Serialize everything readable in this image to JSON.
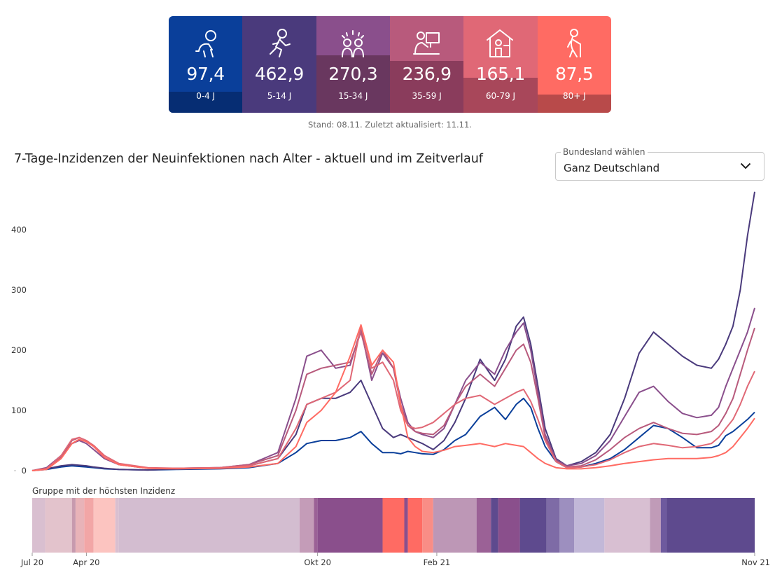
{
  "tiles": [
    {
      "value": "97,4",
      "label": "0-4 J",
      "icon": "baby-crawling-icon",
      "color": "#0a3f9a",
      "dark": "#062d73",
      "split": 108
    },
    {
      "value": "462,9",
      "label": "5-14 J",
      "icon": "child-running-icon",
      "color": "#4a3a7c",
      "dark": "#4a3a7c",
      "split": 0
    },
    {
      "value": "270,3",
      "label": "15-34 J",
      "icon": "young-adults-party-icon",
      "color": "#8a4f8c",
      "dark": "#69375f",
      "split": 56
    },
    {
      "value": "236,9",
      "label": "35-59 J",
      "icon": "office-worker-icon",
      "color": "#b85a7c",
      "dark": "#8a3c5c",
      "split": 64
    },
    {
      "value": "165,1",
      "label": "60-79 J",
      "icon": "senior-at-home-icon",
      "color": "#e06876",
      "dark": "#a8475a",
      "split": 88
    },
    {
      "value": "87,5",
      "label": "80+ J",
      "icon": "elderly-with-cane-icon",
      "color": "#ff6b63",
      "dark": "#b84a4a",
      "split": 112
    }
  ],
  "stand": "Stand: 08.11. Zuletzt aktualisiert: 11.11.",
  "title": "7-Tage-Inzidenzen der Neuinfektionen nach Alter - aktuell und im Zeitverlauf",
  "select": {
    "legend": "Bundesland wählen",
    "value": "Ganz Deutschland"
  },
  "band_label": "Gruppe mit der höchsten Inzidenz",
  "chart_data": {
    "type": "line",
    "y_ticks": [
      0,
      100,
      200,
      300,
      400
    ],
    "ylim": [
      0,
      470
    ],
    "x_ticks": [
      "Jul 20",
      "Apr 20",
      "Okt 20",
      "Feb 21",
      "Nov 21"
    ],
    "x_tick_pos": [
      0.0,
      0.075,
      0.395,
      0.56,
      1.0
    ],
    "x": [
      0.0,
      0.02,
      0.04,
      0.055,
      0.065,
      0.075,
      0.085,
      0.1,
      0.12,
      0.16,
      0.2,
      0.26,
      0.3,
      0.34,
      0.365,
      0.38,
      0.4,
      0.42,
      0.44,
      0.455,
      0.47,
      0.485,
      0.5,
      0.51,
      0.52,
      0.53,
      0.54,
      0.555,
      0.57,
      0.585,
      0.6,
      0.62,
      0.64,
      0.655,
      0.67,
      0.68,
      0.69,
      0.7,
      0.71,
      0.725,
      0.74,
      0.76,
      0.78,
      0.8,
      0.82,
      0.84,
      0.86,
      0.88,
      0.9,
      0.92,
      0.94,
      0.95,
      0.96,
      0.97,
      0.98,
      0.99,
      1.0
    ],
    "series": [
      {
        "color": "#0a3f9a",
        "values": [
          0,
          2,
          6,
          8,
          7,
          6,
          5,
          3,
          2,
          1,
          2,
          3,
          5,
          12,
          30,
          45,
          50,
          50,
          55,
          65,
          45,
          30,
          30,
          28,
          32,
          30,
          28,
          27,
          35,
          50,
          60,
          90,
          105,
          85,
          110,
          120,
          105,
          70,
          40,
          15,
          5,
          6,
          12,
          20,
          35,
          55,
          75,
          70,
          55,
          38,
          38,
          42,
          58,
          65,
          75,
          85,
          97
        ]
      },
      {
        "color": "#4a3a7c",
        "values": [
          0,
          3,
          8,
          10,
          9,
          8,
          6,
          4,
          2,
          1,
          3,
          5,
          8,
          20,
          60,
          110,
          120,
          120,
          130,
          150,
          110,
          70,
          55,
          60,
          55,
          50,
          45,
          35,
          50,
          80,
          120,
          185,
          150,
          185,
          240,
          255,
          210,
          140,
          70,
          20,
          8,
          15,
          30,
          60,
          120,
          195,
          230,
          210,
          190,
          175,
          170,
          185,
          210,
          240,
          300,
          390,
          463
        ]
      },
      {
        "color": "#8a4f8c",
        "values": [
          0,
          5,
          25,
          45,
          50,
          45,
          35,
          20,
          10,
          4,
          4,
          5,
          10,
          30,
          120,
          190,
          200,
          170,
          175,
          235,
          150,
          195,
          170,
          120,
          80,
          65,
          60,
          55,
          70,
          110,
          150,
          180,
          160,
          200,
          230,
          245,
          200,
          130,
          60,
          18,
          8,
          12,
          25,
          50,
          90,
          130,
          140,
          115,
          95,
          88,
          92,
          105,
          140,
          170,
          200,
          230,
          270
        ]
      },
      {
        "color": "#b85a7c",
        "values": [
          0,
          4,
          22,
          50,
          55,
          50,
          40,
          22,
          10,
          4,
          4,
          5,
          10,
          25,
          100,
          160,
          170,
          175,
          180,
          230,
          160,
          200,
          170,
          110,
          75,
          65,
          62,
          60,
          75,
          110,
          140,
          160,
          140,
          170,
          200,
          210,
          180,
          120,
          55,
          16,
          6,
          8,
          18,
          35,
          55,
          70,
          80,
          70,
          62,
          60,
          65,
          75,
          95,
          120,
          160,
          200,
          237
        ]
      },
      {
        "color": "#e06876",
        "values": [
          0,
          3,
          25,
          52,
          55,
          50,
          42,
          25,
          12,
          5,
          4,
          5,
          8,
          20,
          70,
          110,
          120,
          130,
          150,
          240,
          170,
          180,
          150,
          100,
          75,
          70,
          72,
          80,
          95,
          110,
          120,
          125,
          110,
          120,
          130,
          135,
          115,
          85,
          50,
          15,
          5,
          6,
          10,
          18,
          30,
          40,
          45,
          42,
          38,
          40,
          45,
          55,
          70,
          85,
          110,
          140,
          165
        ]
      },
      {
        "color": "#ff6b63",
        "values": [
          0,
          2,
          20,
          45,
          52,
          48,
          40,
          22,
          10,
          4,
          3,
          4,
          6,
          12,
          40,
          80,
          100,
          130,
          190,
          242,
          175,
          200,
          180,
          110,
          55,
          40,
          32,
          30,
          34,
          40,
          42,
          45,
          40,
          45,
          42,
          40,
          30,
          20,
          12,
          5,
          3,
          3,
          5,
          8,
          12,
          15,
          18,
          20,
          20,
          20,
          22,
          25,
          30,
          40,
          55,
          70,
          87
        ]
      }
    ],
    "band_segments": [
      {
        "from": 0.0,
        "to": 0.018,
        "color": "#d9bfd0"
      },
      {
        "from": 0.018,
        "to": 0.055,
        "color": "#e3c3cc"
      },
      {
        "from": 0.055,
        "to": 0.06,
        "color": "#c79aae"
      },
      {
        "from": 0.06,
        "to": 0.072,
        "color": "#e8b3b8"
      },
      {
        "from": 0.072,
        "to": 0.085,
        "color": "#f2a6a6"
      },
      {
        "from": 0.085,
        "to": 0.115,
        "color": "#fcc4c0"
      },
      {
        "from": 0.115,
        "to": 0.12,
        "color": "#d9bfd0"
      },
      {
        "from": 0.12,
        "to": 0.37,
        "color": "#d3bdd0"
      },
      {
        "from": 0.37,
        "to": 0.39,
        "color": "#c49cb8"
      },
      {
        "from": 0.39,
        "to": 0.395,
        "color": "#9b6196"
      },
      {
        "from": 0.395,
        "to": 0.485,
        "color": "#8a4f8c"
      },
      {
        "from": 0.485,
        "to": 0.515,
        "color": "#ff6b63"
      },
      {
        "from": 0.515,
        "to": 0.52,
        "color": "#8a4f8c"
      },
      {
        "from": 0.52,
        "to": 0.54,
        "color": "#ff6b63"
      },
      {
        "from": 0.54,
        "to": 0.555,
        "color": "#f98d86"
      },
      {
        "from": 0.555,
        "to": 0.615,
        "color": "#bd97b6"
      },
      {
        "from": 0.615,
        "to": 0.635,
        "color": "#9b6196"
      },
      {
        "from": 0.635,
        "to": 0.645,
        "color": "#5e4a8e"
      },
      {
        "from": 0.645,
        "to": 0.675,
        "color": "#8a4f8c"
      },
      {
        "from": 0.675,
        "to": 0.712,
        "color": "#5e4a8e"
      },
      {
        "from": 0.712,
        "to": 0.73,
        "color": "#7e6ba6"
      },
      {
        "from": 0.73,
        "to": 0.75,
        "color": "#9d8fbf"
      },
      {
        "from": 0.75,
        "to": 0.792,
        "color": "#c2b8d8"
      },
      {
        "from": 0.792,
        "to": 0.855,
        "color": "#d8bfd2"
      },
      {
        "from": 0.855,
        "to": 0.87,
        "color": "#c09bb8"
      },
      {
        "from": 0.87,
        "to": 0.878,
        "color": "#6e5a9e"
      },
      {
        "from": 0.878,
        "to": 1.0,
        "color": "#5e4a8e"
      }
    ]
  }
}
